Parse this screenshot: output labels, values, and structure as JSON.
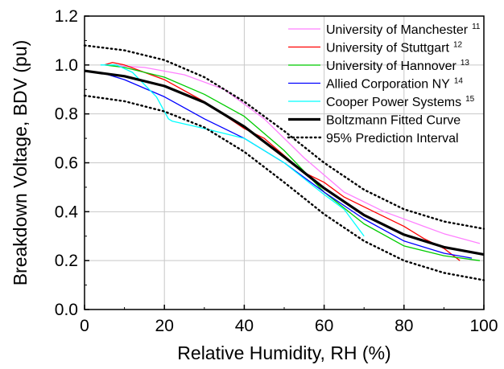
{
  "chart_data": {
    "type": "line",
    "xlabel": "Relative Humidity, RH (%)",
    "ylabel": "Breakdown Voltage, BDV (pu)",
    "xlim": [
      0,
      100
    ],
    "ylim": [
      0.0,
      1.2
    ],
    "xticks": [
      0,
      20,
      40,
      60,
      80,
      100
    ],
    "yticks": [
      0.0,
      0.2,
      0.4,
      0.6,
      0.8,
      1.0,
      1.2
    ],
    "grid": true,
    "legend_position": "top-right",
    "series": [
      {
        "name": "University of Manchester",
        "ref": "11",
        "color": "#ff80ff",
        "style": "solid",
        "points": [
          [
            5,
            1.0
          ],
          [
            15,
            0.99
          ],
          [
            25,
            0.96
          ],
          [
            35,
            0.9
          ],
          [
            45,
            0.78
          ],
          [
            55,
            0.62
          ],
          [
            65,
            0.48
          ],
          [
            75,
            0.4
          ],
          [
            85,
            0.34
          ],
          [
            90,
            0.31
          ],
          [
            99,
            0.27
          ]
        ]
      },
      {
        "name": "University of Stuttgart",
        "ref": "12",
        "color": "#ff0000",
        "style": "solid",
        "points": [
          [
            5,
            1.0
          ],
          [
            7,
            1.01
          ],
          [
            10,
            1.0
          ],
          [
            15,
            0.97
          ],
          [
            20,
            0.94
          ],
          [
            30,
            0.85
          ],
          [
            40,
            0.74
          ],
          [
            45,
            0.7
          ],
          [
            50,
            0.63
          ],
          [
            55,
            0.56
          ],
          [
            60,
            0.52
          ],
          [
            65,
            0.46
          ],
          [
            70,
            0.42
          ],
          [
            75,
            0.38
          ],
          [
            80,
            0.34
          ],
          [
            85,
            0.29
          ],
          [
            90,
            0.25
          ],
          [
            94,
            0.2
          ]
        ]
      },
      {
        "name": "University of Hannover",
        "ref": "13",
        "color": "#00cc00",
        "style": "solid",
        "points": [
          [
            5,
            1.0
          ],
          [
            10,
            0.99
          ],
          [
            20,
            0.95
          ],
          [
            30,
            0.88
          ],
          [
            40,
            0.79
          ],
          [
            50,
            0.65
          ],
          [
            60,
            0.48
          ],
          [
            70,
            0.35
          ],
          [
            80,
            0.26
          ],
          [
            90,
            0.22
          ],
          [
            99,
            0.2
          ]
        ]
      },
      {
        "name": "Allied Corporation NY",
        "ref": "14",
        "color": "#0000ff",
        "style": "solid",
        "points": [
          [
            4,
            0.97
          ],
          [
            10,
            0.94
          ],
          [
            20,
            0.87
          ],
          [
            30,
            0.78
          ],
          [
            40,
            0.7
          ],
          [
            50,
            0.6
          ],
          [
            60,
            0.48
          ],
          [
            70,
            0.37
          ],
          [
            80,
            0.28
          ],
          [
            90,
            0.23
          ],
          [
            97,
            0.21
          ]
        ]
      },
      {
        "name": "Cooper Power Systems",
        "ref": "15",
        "color": "#00ffff",
        "style": "solid",
        "points": [
          [
            4,
            1.0
          ],
          [
            8,
            1.0
          ],
          [
            12,
            0.97
          ],
          [
            18,
            0.87
          ],
          [
            21,
            0.78
          ],
          [
            22,
            0.77
          ],
          [
            30,
            0.74
          ],
          [
            35,
            0.72
          ],
          [
            40,
            0.7
          ],
          [
            50,
            0.6
          ],
          [
            60,
            0.47
          ],
          [
            65,
            0.41
          ],
          [
            70,
            0.3
          ]
        ]
      },
      {
        "name": "Boltzmann Fitted Curve",
        "ref": "",
        "color": "#000000",
        "style": "thick",
        "points": [
          [
            0,
            0.976
          ],
          [
            10,
            0.954
          ],
          [
            20,
            0.914
          ],
          [
            30,
            0.847
          ],
          [
            40,
            0.748
          ],
          [
            50,
            0.624
          ],
          [
            60,
            0.496
          ],
          [
            70,
            0.386
          ],
          [
            80,
            0.306
          ],
          [
            90,
            0.255
          ],
          [
            100,
            0.225
          ]
        ]
      },
      {
        "name": "95% Prediction Interval",
        "ref": "",
        "color": "#000000",
        "style": "dotted",
        "bands": [
          [
            [
              0,
              1.08
            ],
            [
              10,
              1.06
            ],
            [
              20,
              1.02
            ],
            [
              30,
              0.95
            ],
            [
              40,
              0.85
            ],
            [
              50,
              0.73
            ],
            [
              60,
              0.6
            ],
            [
              70,
              0.49
            ],
            [
              80,
              0.41
            ],
            [
              90,
              0.36
            ],
            [
              100,
              0.33
            ]
          ],
          [
            [
              0,
              0.875
            ],
            [
              10,
              0.852
            ],
            [
              20,
              0.81
            ],
            [
              30,
              0.745
            ],
            [
              40,
              0.645
            ],
            [
              50,
              0.52
            ],
            [
              60,
              0.39
            ],
            [
              70,
              0.28
            ],
            [
              80,
              0.2
            ],
            [
              90,
              0.15
            ],
            [
              100,
              0.12
            ]
          ]
        ]
      }
    ]
  }
}
